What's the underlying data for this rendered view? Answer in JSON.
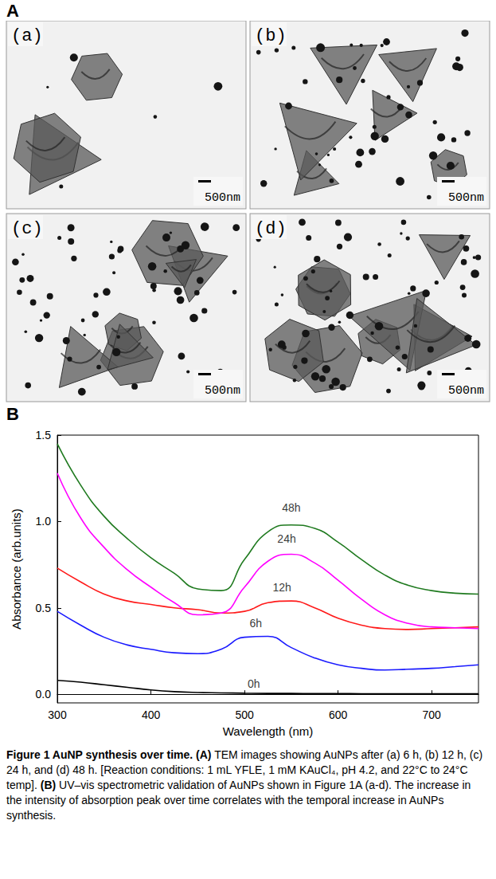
{
  "panel_a": {
    "label": "A",
    "images": [
      {
        "label": "(a)",
        "scale_bar": "500nm"
      },
      {
        "label": "(b)",
        "scale_bar": "500nm"
      },
      {
        "label": "(c)",
        "scale_bar": "500nm"
      },
      {
        "label": "(d)",
        "scale_bar": "500nm"
      }
    ]
  },
  "chart_data": {
    "type": "line",
    "panel_label": "B",
    "x_label": "Wavelength (nm)",
    "y_label": "Absorbance (arb.units)",
    "x": [
      300,
      325,
      350,
      375,
      400,
      425,
      450,
      475,
      500,
      525,
      550,
      575,
      600,
      625,
      650,
      675,
      700,
      725,
      750
    ],
    "series": [
      {
        "color": "#000000",
        "values": [
          0.08,
          0.07,
          0.055,
          0.04,
          0.025,
          0.015,
          0.01,
          0.008,
          0.006,
          0.005,
          0.005,
          0.004,
          0.004,
          0.003,
          0.003,
          0.003,
          0.003,
          0.003,
          0.003
        ]
      },
      {
        "color": "#1a1aff",
        "values": [
          0.48,
          0.4,
          0.33,
          0.285,
          0.26,
          0.24,
          0.235,
          0.26,
          0.33,
          0.335,
          0.27,
          0.21,
          0.17,
          0.15,
          0.14,
          0.145,
          0.15,
          0.16,
          0.17
        ]
      },
      {
        "color": "#ff1a1a",
        "values": [
          0.73,
          0.65,
          0.58,
          0.54,
          0.52,
          0.5,
          0.49,
          0.47,
          0.48,
          0.53,
          0.54,
          0.5,
          0.44,
          0.4,
          0.38,
          0.375,
          0.38,
          0.385,
          0.39
        ]
      },
      {
        "color": "#ff00ff",
        "values": [
          1.28,
          1.02,
          0.85,
          0.72,
          0.62,
          0.53,
          0.46,
          0.47,
          0.62,
          0.77,
          0.81,
          0.76,
          0.66,
          0.55,
          0.46,
          0.41,
          0.39,
          0.385,
          0.38
        ]
      },
      {
        "color": "#1f7a1f",
        "values": [
          1.45,
          1.21,
          1.03,
          0.9,
          0.79,
          0.7,
          0.61,
          0.6,
          0.78,
          0.94,
          0.98,
          0.96,
          0.88,
          0.78,
          0.69,
          0.63,
          0.6,
          0.585,
          0.58
        ]
      }
    ],
    "annotations": [
      {
        "text": "0h",
        "x": 510,
        "y": 0.06
      },
      {
        "text": "6h",
        "x": 512,
        "y": 0.41
      },
      {
        "text": "12h",
        "x": 540,
        "y": 0.62
      },
      {
        "text": "24h",
        "x": 545,
        "y": 0.9
      },
      {
        "text": "48h",
        "x": 550,
        "y": 1.08
      }
    ],
    "xlim": [
      300,
      750
    ],
    "xticks": [
      300,
      400,
      500,
      600,
      700
    ],
    "ylim": [
      -0.05,
      1.5
    ],
    "yticks": [
      {
        "value": 0,
        "label": "0.0"
      },
      {
        "value": 0.5,
        "label": "0.5"
      },
      {
        "value": 1,
        "label": "1.0"
      },
      {
        "value": 1.5,
        "label": "1.5"
      }
    ],
    "grid": false
  },
  "caption": [
    {
      "text": "Figure 1 AuNP synthesis over time.",
      "bold": true
    },
    {
      "text": " ",
      "bold": false
    },
    {
      "text": "(A)",
      "bold": true
    },
    {
      "text": " TEM images showing AuNPs after (a) 6 h, (b) 12 h, (c) 24 h, and (d) 48 h. [Reaction conditions: 1 mL YFLE, 1 mM KAuCl₄, pH 4.2, and 22°C to 24°C temp]. ",
      "bold": false
    },
    {
      "text": "(B)",
      "bold": true
    },
    {
      "text": " UV–vis spectrometric validation of AuNPs shown in Figure 1A (a-d). The increase in the intensity of absorption peak over time correlates with the temporal increase in AuNPs synthesis.",
      "bold": false
    }
  ]
}
